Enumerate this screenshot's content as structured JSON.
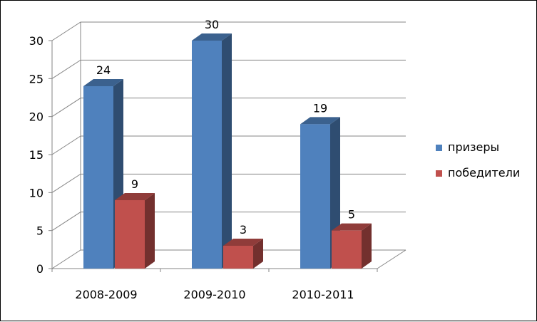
{
  "chart_data": {
    "type": "bar",
    "categories": [
      "2008-2009",
      "2009-2010",
      "2010-2011"
    ],
    "series": [
      {
        "name": "призеры",
        "values": [
          24,
          30,
          19
        ],
        "color": "#4F81BD"
      },
      {
        "name": "победители",
        "values": [
          9,
          3,
          5
        ],
        "color": "#C0504D"
      }
    ],
    "ylim": [
      0,
      30
    ],
    "yticks": [
      "0",
      "5",
      "10",
      "15",
      "20",
      "25",
      "30"
    ],
    "grid": true,
    "legend": "right",
    "style": "3d-clustered-column"
  }
}
